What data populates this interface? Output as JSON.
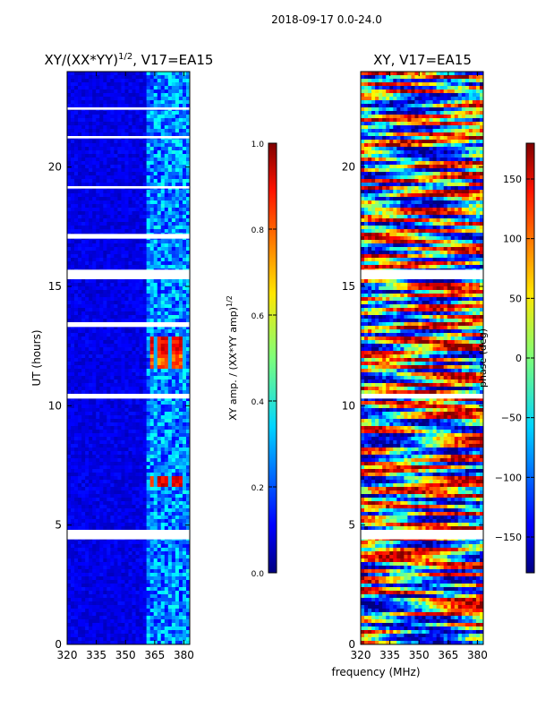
{
  "figure_title": "2018-09-17 0.0-24.0",
  "shared_xlabel": "frequency (MHz)",
  "chart_data": [
    {
      "type": "heatmap",
      "title_main": "XY/(XX*YY)",
      "title_sup": "1/2",
      "title_tail": ", V17=EA15",
      "xlabel": "frequency (MHz)",
      "ylabel": "UT (hours)",
      "xlim": [
        320,
        383
      ],
      "ylim": [
        0,
        24
      ],
      "x_ticks": [
        320,
        335,
        350,
        365,
        380
      ],
      "y_ticks": [
        0,
        5,
        10,
        15,
        20
      ],
      "colorbar": {
        "label_main": "XY amp. / (XX*YY amp)",
        "label_sup": "1/2",
        "range": [
          0.0,
          1.0
        ],
        "ticks": [
          "0.0",
          "0.2",
          "0.4",
          "0.6",
          "0.8",
          "1.0"
        ],
        "tick_values": [
          0.0,
          0.2,
          0.4,
          0.6,
          0.8,
          1.0
        ]
      },
      "flagged_ut_bands": [
        [
          4.4,
          4.8
        ],
        [
          10.3,
          10.5
        ],
        [
          13.3,
          13.5
        ],
        [
          15.3,
          15.7
        ],
        [
          17.0,
          17.2
        ],
        [
          19.1,
          19.2
        ],
        [
          21.2,
          21.3
        ],
        [
          22.4,
          22.5
        ]
      ],
      "hot_spots": [
        {
          "ut": [
            6.6,
            7.1
          ],
          "freq": [
            362,
            382
          ],
          "value": 0.95
        },
        {
          "ut": [
            11.5,
            12.2
          ],
          "freq": [
            362,
            382
          ],
          "value": 0.85
        },
        {
          "ut": [
            12.2,
            12.9
          ],
          "freq": [
            362,
            382
          ],
          "value": 0.95
        }
      ]
    },
    {
      "type": "heatmap",
      "title": "XY, V17=EA15",
      "xlabel": "frequency (MHz)",
      "ylabel": "",
      "xlim": [
        320,
        383
      ],
      "ylim": [
        0,
        24
      ],
      "x_ticks": [
        320,
        335,
        350,
        365,
        380
      ],
      "y_ticks": [
        0,
        5,
        10,
        15,
        20
      ],
      "colorbar": {
        "label": "phase (deg)",
        "range": [
          -180,
          180
        ],
        "ticks": [
          "-150",
          "-100",
          "-50",
          "0",
          "50",
          "100",
          "150"
        ],
        "tick_values": [
          -150,
          -100,
          -50,
          0,
          50,
          100,
          150
        ]
      },
      "flagged_ut_bands": [
        [
          4.4,
          4.8
        ],
        [
          10.3,
          10.5
        ],
        [
          15.3,
          15.7
        ]
      ]
    }
  ]
}
